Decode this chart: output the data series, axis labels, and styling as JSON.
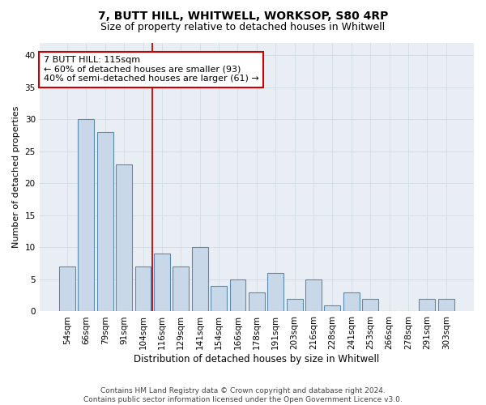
{
  "title": "7, BUTT HILL, WHITWELL, WORKSOP, S80 4RP",
  "subtitle": "Size of property relative to detached houses in Whitwell",
  "xlabel": "Distribution of detached houses by size in Whitwell",
  "ylabel": "Number of detached properties",
  "categories": [
    "54sqm",
    "66sqm",
    "79sqm",
    "91sqm",
    "104sqm",
    "116sqm",
    "129sqm",
    "141sqm",
    "154sqm",
    "166sqm",
    "178sqm",
    "191sqm",
    "203sqm",
    "216sqm",
    "228sqm",
    "241sqm",
    "253sqm",
    "266sqm",
    "278sqm",
    "291sqm",
    "303sqm"
  ],
  "values": [
    7,
    30,
    28,
    23,
    7,
    9,
    7,
    10,
    4,
    5,
    3,
    6,
    2,
    5,
    1,
    3,
    2,
    0,
    0,
    2,
    2
  ],
  "bar_color": "#c8d8e8",
  "bar_edge_color": "#5a8ab0",
  "bar_edge_width": 0.8,
  "marker_index": 5,
  "marker_color": "#cc0000",
  "annotation_line1": "7 BUTT HILL: 115sqm",
  "annotation_line2": "← 60% of detached houses are smaller (93)",
  "annotation_line3": "40% of semi-detached houses are larger (61) →",
  "annotation_box_color": "#ffffff",
  "annotation_box_edge": "#cc0000",
  "ylim": [
    0,
    42
  ],
  "yticks": [
    0,
    5,
    10,
    15,
    20,
    25,
    30,
    35,
    40
  ],
  "grid_color": "#d4dfe8",
  "background_color": "#e8eef4",
  "footer_line1": "Contains HM Land Registry data © Crown copyright and database right 2024.",
  "footer_line2": "Contains public sector information licensed under the Open Government Licence v3.0.",
  "title_fontsize": 10,
  "subtitle_fontsize": 9,
  "xlabel_fontsize": 8.5,
  "ylabel_fontsize": 8,
  "tick_fontsize": 7.5,
  "footer_fontsize": 6.5,
  "annotation_fontsize": 8
}
